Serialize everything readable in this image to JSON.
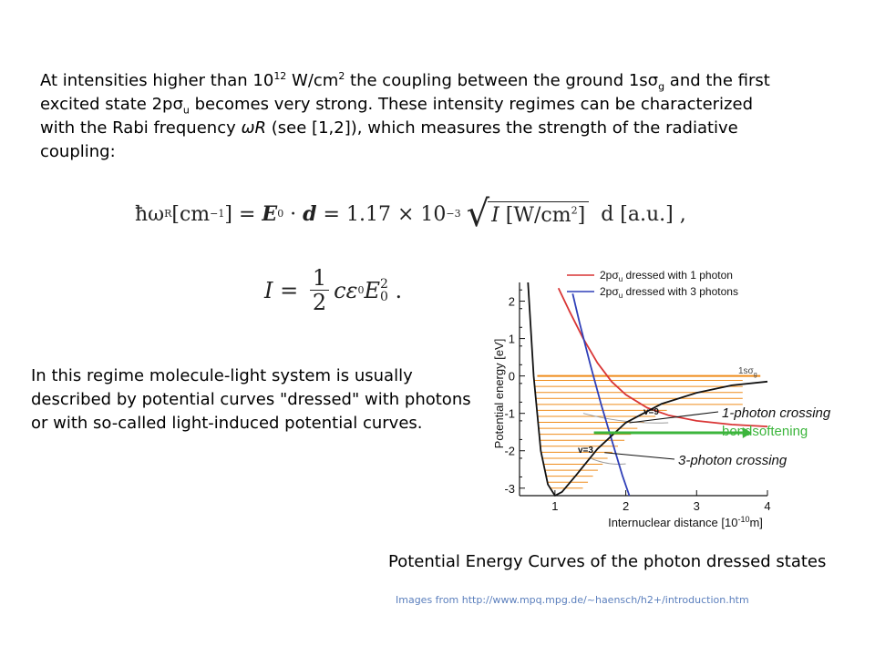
{
  "intro": {
    "t1": "At intensities higher than 10",
    "exp": "12",
    "t2": " W/cm",
    "sq": "2",
    "t3": " the coupling between the ground 1sσ",
    "sub_g": "g",
    "t4": " and the first excited state 2pσ",
    "sub_u": "u",
    "t5": " becomes very strong. These intensity regimes can be characterized with the Rabi frequency ",
    "omega": "ωR",
    "t6": " (see [1,2]), which measures the strength of the radiative coupling:"
  },
  "equation1": {
    "lhs": "ħω",
    "lhs_sub": "R",
    "lhs_unit": " [cm",
    "lhs_unit_exp": "−1",
    "lhs_unit_close": "]",
    "eq1": " = ",
    "E": "E",
    "E_sub": "0",
    "dot": " · ",
    "d": "d",
    "eq2": " = 1.17 × 10",
    "exp": "−3",
    "rad_I": "I",
    "rad_unit": " [W/cm",
    "rad_exp": "2",
    "rad_close": "]",
    "tail": " d [a.u.] ,"
  },
  "equation2": {
    "lhs": "I = ",
    "num": "1",
    "den": "2",
    "rhs": "cε",
    "rhs_sub": "0",
    "rhs2": "E",
    "rhs2_sup": "2",
    "rhs2_sub": "0",
    "tail": " ."
  },
  "regime": {
    "text": "In this regime molecule-light system is usually described by potential curves \"dressed\" with photons or with so-called light-induced potential curves."
  },
  "chart_data": {
    "type": "line",
    "xlabel": "Internuclear distance [10",
    "xlabel_exp": "-10",
    "xlabel_end": "m]",
    "ylabel": "Potential energy [eV]",
    "xlim": [
      0.5,
      4
    ],
    "ylim": [
      -3.2,
      2.5
    ],
    "xticks": [
      "1",
      "2",
      "3",
      "4"
    ],
    "yticks": [
      "2",
      "1",
      "0",
      "-1",
      "-2",
      "-3"
    ],
    "legend_position": "top",
    "legend": [
      {
        "label": "2pσ",
        "sub": "u",
        "rest": " dressed with 1 photon",
        "color": "#d93535"
      },
      {
        "label": "2pσ",
        "sub": "u",
        "rest": " dressed with 3 photons",
        "color": "#2f3fb8"
      }
    ],
    "series": [
      {
        "color": "#d93535",
        "x": [
          1.05,
          1.2,
          1.4,
          1.6,
          1.8,
          2.0,
          2.3,
          2.6,
          3.0,
          3.5,
          4.0
        ],
        "y": [
          2.35,
          1.75,
          1.0,
          0.35,
          -0.15,
          -0.5,
          -0.85,
          -1.05,
          -1.2,
          -1.3,
          -1.35
        ]
      },
      {
        "color": "#2f3fb8",
        "x": [
          1.25,
          1.35,
          1.5,
          1.65,
          1.8,
          1.95,
          2.05
        ],
        "y": [
          2.2,
          1.4,
          0.3,
          -0.75,
          -1.7,
          -2.65,
          -3.2
        ]
      },
      {
        "color": "#111111",
        "x": [
          0.62,
          0.7,
          0.8,
          0.9,
          1.0,
          1.1,
          1.3,
          1.6,
          2.0,
          2.5,
          3.0,
          3.5,
          4.0
        ],
        "y": [
          2.5,
          0.0,
          -2.0,
          -2.9,
          -3.2,
          -3.1,
          -2.65,
          -1.95,
          -1.25,
          -0.75,
          -0.45,
          -0.25,
          -0.15
        ]
      }
    ],
    "annotations": {
      "ground": "1sσ",
      "ground_sub": "g",
      "v9": "v=9",
      "v3": "v=3",
      "crossing1": "1-photon crossing",
      "bond": "bondsoftening",
      "crossing3": "3-photon crossing"
    },
    "colors": {
      "levels": "#ef8c1a",
      "arrow": "#3cb53c",
      "gray_curve": "#9a9a9a"
    }
  },
  "caption": "Potential Energy Curves of the photon dressed states",
  "credit": "Images from http://www.mpq.mpg.de/~haensch/h2+/introduction.htm"
}
